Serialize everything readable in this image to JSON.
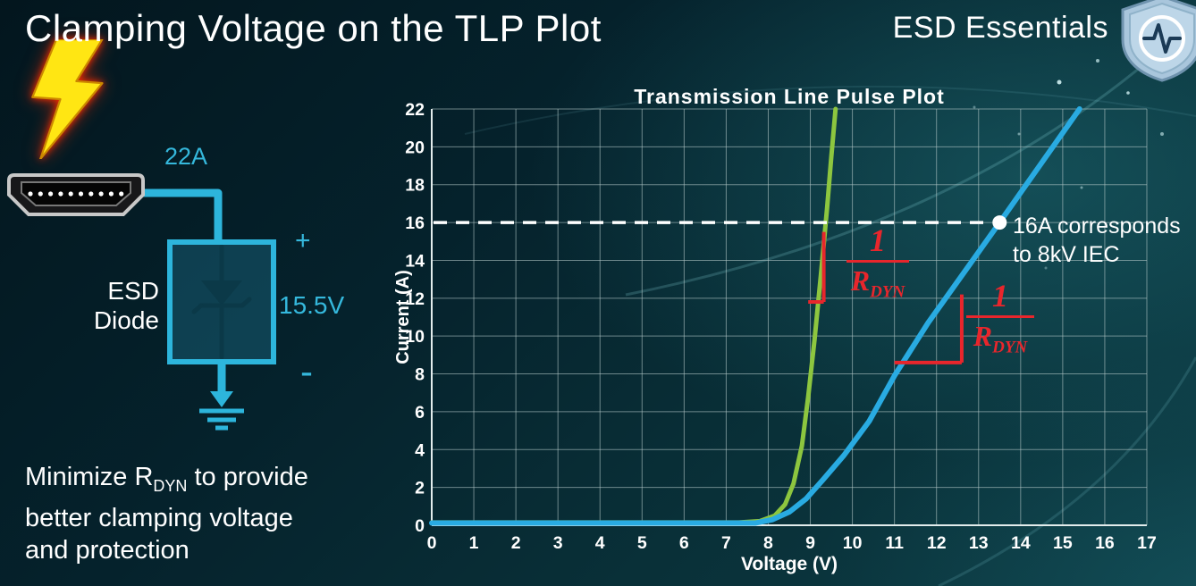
{
  "header": {
    "title": "Clamping Voltage on the TLP Plot",
    "brand": "ESD Essentials"
  },
  "circuit": {
    "surge_current_label": "22A",
    "device_label_line1": "ESD",
    "device_label_line2": "Diode",
    "polarity_plus": "+",
    "clamping_voltage_label": "15.5V",
    "polarity_minus": "-",
    "wire_color": "#2db5dc"
  },
  "note": {
    "line1_before_sub": "Minimize R",
    "line1_sub": "DYN",
    "line1_after_sub": " to provide",
    "line2": "better clamping voltage",
    "line3": "and protection"
  },
  "chart_data": {
    "type": "line",
    "title": "Transmission Line Pulse Plot",
    "xlabel": "Voltage (V)",
    "ylabel": "Current (A)",
    "xlim": [
      0,
      17
    ],
    "ylim": [
      0,
      22
    ],
    "xticks": [
      0,
      1,
      2,
      3,
      4,
      5,
      6,
      7,
      8,
      9,
      10,
      11,
      12,
      13,
      14,
      15,
      16,
      17
    ],
    "yticks": [
      0,
      2,
      4,
      6,
      8,
      10,
      12,
      14,
      16,
      18,
      20,
      22
    ],
    "grid": true,
    "series": [
      {
        "name": "green-curve-low-rdyn",
        "color": "#8dc63f",
        "width": 5,
        "points": [
          [
            0,
            0.15
          ],
          [
            7.3,
            0.15
          ],
          [
            7.8,
            0.22
          ],
          [
            8.15,
            0.5
          ],
          [
            8.4,
            1.1
          ],
          [
            8.6,
            2.2
          ],
          [
            8.8,
            4.2
          ],
          [
            8.95,
            6.8
          ],
          [
            9.1,
            9.8
          ],
          [
            9.25,
            13.2
          ],
          [
            9.4,
            16.8
          ],
          [
            9.5,
            19.5
          ],
          [
            9.6,
            22
          ]
        ]
      },
      {
        "name": "blue-curve-high-rdyn",
        "color": "#29abe2",
        "width": 6,
        "points": [
          [
            0,
            0.12
          ],
          [
            7.7,
            0.12
          ],
          [
            8.1,
            0.3
          ],
          [
            8.5,
            0.7
          ],
          [
            8.9,
            1.4
          ],
          [
            9.3,
            2.4
          ],
          [
            9.8,
            3.7
          ],
          [
            10.4,
            5.5
          ],
          [
            11.0,
            7.9
          ],
          [
            11.8,
            10.7
          ],
          [
            12.7,
            13.5
          ],
          [
            13.5,
            16
          ],
          [
            14.45,
            19
          ],
          [
            15.4,
            22
          ]
        ]
      }
    ],
    "reference_line": {
      "y": 16,
      "color": "#ffffff",
      "style": "dashed"
    },
    "marker_point": {
      "x": 13.5,
      "y": 16,
      "color": "#ffffff"
    },
    "marker_annotation": {
      "line1": "16A corresponds",
      "line2": "to 8kV IEC",
      "color": "#ffffff"
    },
    "slope_labels": [
      {
        "numerator": "1",
        "denominator": "R",
        "denominator_sub": "DYN",
        "color": "#e8262c"
      },
      {
        "numerator": "1",
        "denominator": "R",
        "denominator_sub": "DYN",
        "color": "#e8262c"
      }
    ],
    "slope_markers": [
      {
        "shape": "vertical-rise",
        "x": 9.32,
        "y_top": 15.5,
        "y_bottom": 11.8,
        "foot_x": 8.95,
        "color": "#e8262c"
      },
      {
        "shape": "run-and-rise",
        "x_left": 11.0,
        "x_right": 12.6,
        "y": 8.6,
        "y_top": 12.2,
        "color": "#e8262c"
      }
    ]
  }
}
